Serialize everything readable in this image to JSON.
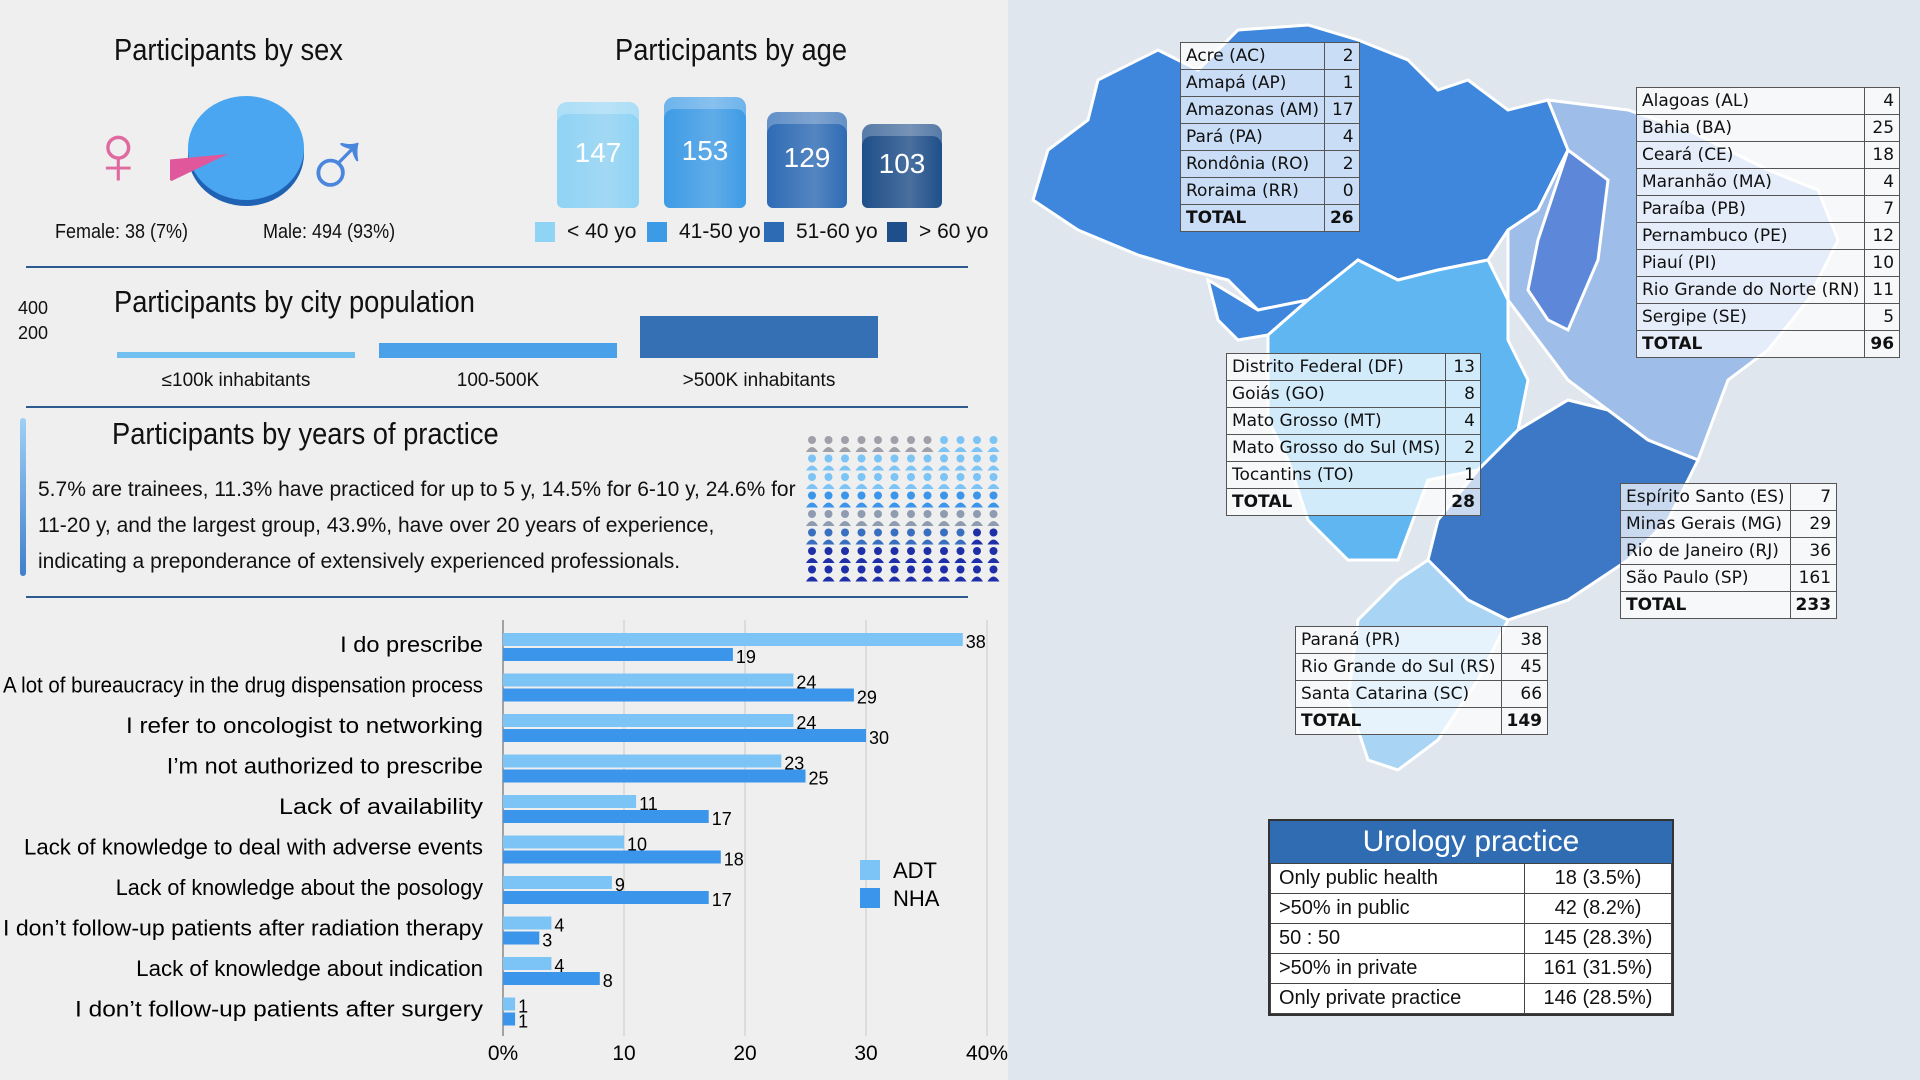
{
  "sex": {
    "title": "Participants by sex",
    "female_label": "Female: 38 (7%)",
    "male_label": "Male: 494 (93%)",
    "female": 38,
    "male": 494,
    "female_symbol": "♀",
    "male_symbol": "♂"
  },
  "age": {
    "title": "Participants by age",
    "groups": [
      {
        "value": "147",
        "label": "< 40 yo",
        "color": "#8fd3f5"
      },
      {
        "value": "153",
        "label": "41-50 yo",
        "color": "#3d9be6"
      },
      {
        "value": "129",
        "label": "51-60 yo",
        "color": "#2e6bb5"
      },
      {
        "value": "103",
        "label": "> 60 yo",
        "color": "#1f4f8a"
      }
    ]
  },
  "city": {
    "title": "Participants by city population",
    "axis_ticks": [
      "400",
      "200"
    ],
    "bars": [
      {
        "label": "≤100k  inhabitants",
        "color": "#72c0ef",
        "share": 0.05
      },
      {
        "label": "100-500K",
        "color": "#4aa1ea",
        "share": 0.15
      },
      {
        "label": ">500K inhabitants",
        "color": "#3570b5",
        "share": 0.42
      }
    ]
  },
  "practice": {
    "title": "Participants by years of practice",
    "text": "5.7% are trainees, 11.3% have practiced for up to 5 y, 14.5% for 6-10 y, 24.6% for 11-20 y, and the largest group, 43.9%, have over 20 years of experience, indicating a preponderance of extensively experienced professionals."
  },
  "chart_data": {
    "type": "bar",
    "orientation": "horizontal",
    "categories": [
      "I do prescribe",
      "A lot of bureaucracy in the drug dispensation process",
      "I refer to oncologist to networking",
      "I’m not authorized to prescribe",
      "Lack of availability",
      "Lack of knowledge to deal with adverse events",
      "Lack of knowledge about the posology",
      "I don’t follow-up patients after radiation therapy",
      "Lack of knowledge about indication",
      "I don’t follow-up patients after surgery"
    ],
    "series": [
      {
        "name": "ADT",
        "color": "#7cc4f5",
        "values": [
          38,
          24,
          24,
          23,
          11,
          10,
          9,
          4,
          4,
          1
        ]
      },
      {
        "name": "NHA",
        "color": "#3b95ea",
        "values": [
          19,
          29,
          30,
          25,
          17,
          18,
          17,
          3,
          8,
          1
        ]
      }
    ],
    "xlim": [
      0,
      40
    ],
    "xticks": [
      "0%",
      "10",
      "20",
      "30",
      "40%"
    ],
    "xlabel": "",
    "ylabel": "",
    "legend": "right"
  },
  "regions": {
    "north": {
      "rows": [
        {
          "name": "Acre (AC)",
          "value": "2"
        },
        {
          "name": "Amapá (AP)",
          "value": "1"
        },
        {
          "name": "Amazonas (AM)",
          "value": "17"
        },
        {
          "name": "Pará (PA)",
          "value": "4"
        },
        {
          "name": "Rondônia (RO)",
          "value": "2"
        },
        {
          "name": "Roraima (RR)",
          "value": "0"
        }
      ],
      "total_label": "TOTAL",
      "total": "26"
    },
    "northeast": {
      "rows": [
        {
          "name": "Alagoas (AL)",
          "value": "4"
        },
        {
          "name": "Bahia (BA)",
          "value": "25"
        },
        {
          "name": "Ceará (CE)",
          "value": "18"
        },
        {
          "name": "Maranhão (MA)",
          "value": "4"
        },
        {
          "name": "Paraíba (PB)",
          "value": "7"
        },
        {
          "name": "Pernambuco (PE)",
          "value": "12"
        },
        {
          "name": "Piauí (PI)",
          "value": "10"
        },
        {
          "name": "Rio Grande do Norte (RN)",
          "value": "11"
        },
        {
          "name": "Sergipe (SE)",
          "value": "5"
        }
      ],
      "total_label": "TOTAL",
      "total": "96"
    },
    "centerwest": {
      "rows": [
        {
          "name": "Distrito Federal (DF)",
          "value": "13"
        },
        {
          "name": "Goiás (GO)",
          "value": "8"
        },
        {
          "name": "Mato Grosso (MT)",
          "value": "4"
        },
        {
          "name": "Mato Grosso do Sul (MS)",
          "value": "2"
        },
        {
          "name": "Tocantins (TO)",
          "value": "1"
        }
      ],
      "total_label": "TOTAL",
      "total": "28"
    },
    "southeast": {
      "rows": [
        {
          "name": "Espírito Santo (ES)",
          "value": "7"
        },
        {
          "name": "Minas Gerais (MG)",
          "value": "29"
        },
        {
          "name": "Rio de Janeiro (RJ)",
          "value": "36"
        },
        {
          "name": "São Paulo (SP)",
          "value": "161"
        }
      ],
      "total_label": "TOTAL",
      "total": "233"
    },
    "south": {
      "rows": [
        {
          "name": "Paraná (PR)",
          "value": "38"
        },
        {
          "name": "Rio Grande do Sul (RS)",
          "value": "45"
        },
        {
          "name": "Santa Catarina (SC)",
          "value": "66"
        }
      ],
      "total_label": "TOTAL",
      "total": "149"
    }
  },
  "urology": {
    "title": "Urology practice",
    "rows": [
      {
        "label": "Only public health",
        "value": "18 (3.5%)"
      },
      {
        "label": ">50% in public",
        "value": "42 (8.2%)"
      },
      {
        "label": "50 : 50",
        "value": "145 (28.3%)"
      },
      {
        "label": ">50% in private",
        "value": "161 (31.5%)"
      },
      {
        "label": "Only private practice",
        "value": "146 (28.5%)"
      }
    ]
  },
  "colors": {
    "divider": "#2e5b8f",
    "north": "#3f86dd",
    "northeast": "#5d87d8",
    "centerwest": "#5fb6f0",
    "southeast": "#3d78c6",
    "south": "#8fc8f0",
    "female": "#e06aa0",
    "male": "#4a86dc"
  }
}
